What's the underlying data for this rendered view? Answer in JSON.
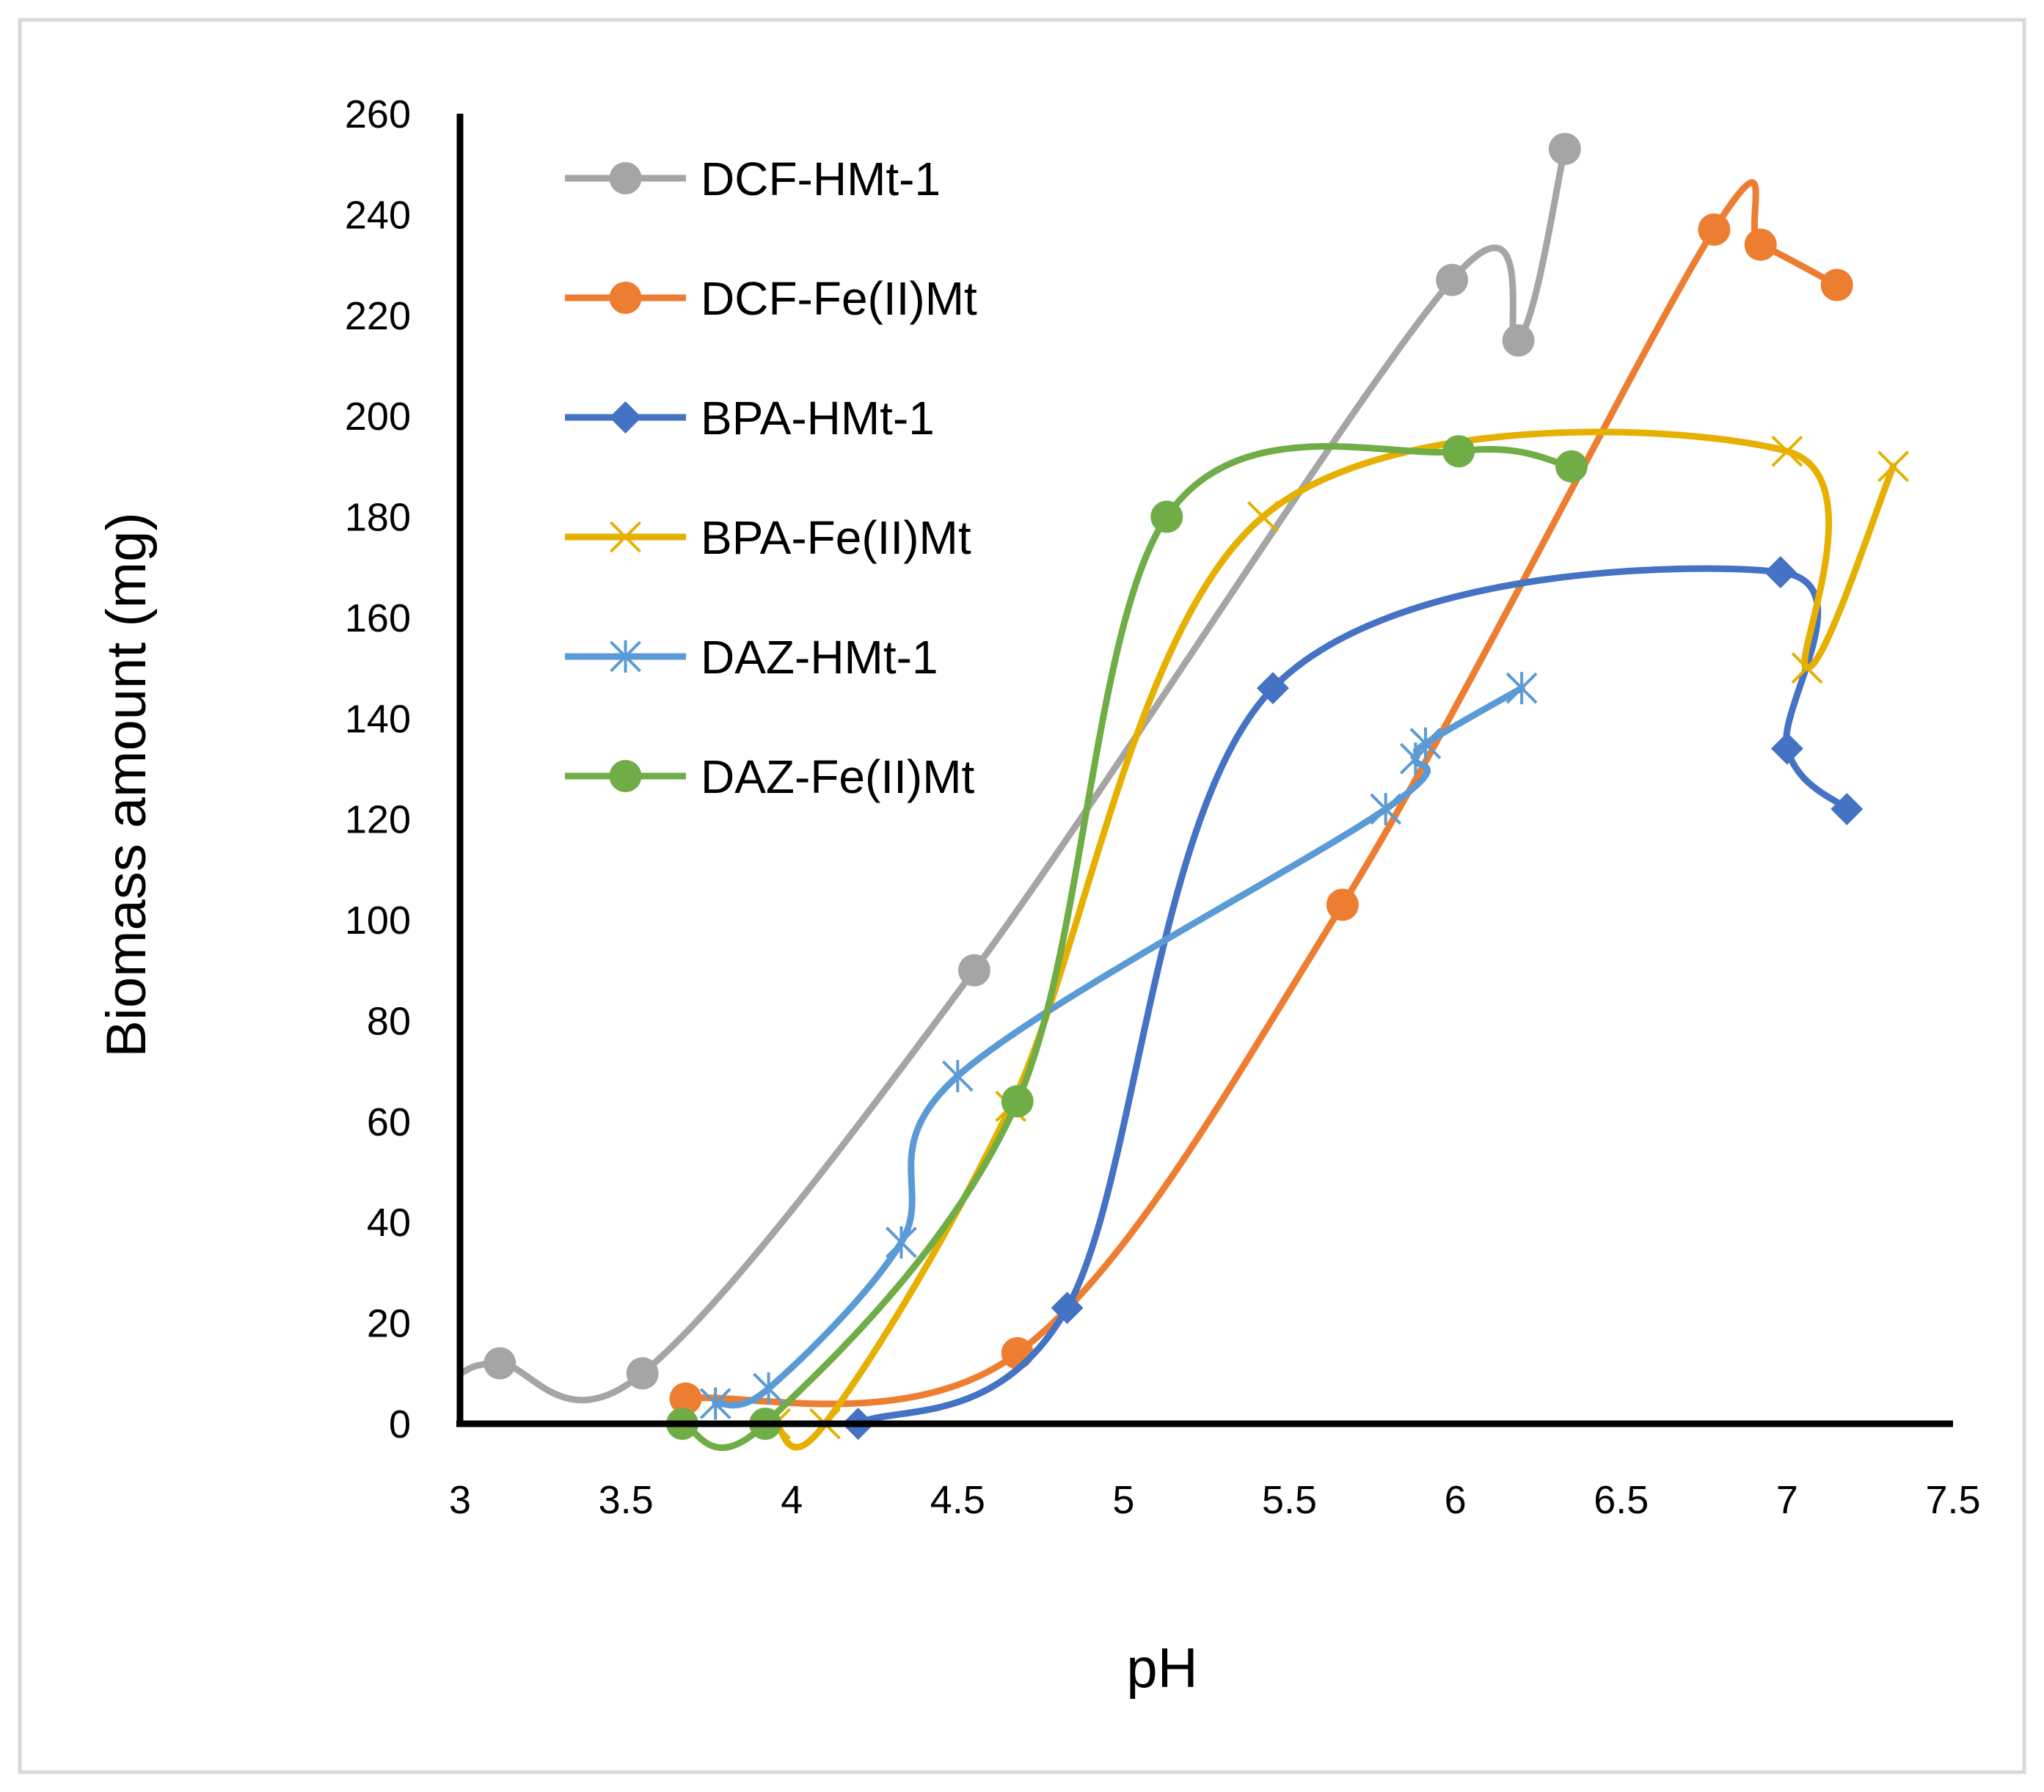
{
  "chart_data": {
    "type": "line",
    "title": "",
    "xlabel": "pH",
    "ylabel": "Biomass amount (mg)",
    "xlim": [
      3,
      7.5
    ],
    "ylim": [
      0,
      260
    ],
    "xticks": [
      3,
      3.5,
      4,
      4.5,
      5,
      5.5,
      6,
      6.5,
      7,
      7.5
    ],
    "yticks": [
      0,
      20,
      40,
      60,
      80,
      100,
      120,
      140,
      160,
      180,
      200,
      220,
      240,
      260
    ],
    "xtick_labels": [
      "3",
      "3.5",
      "4",
      "4.5",
      "5",
      "5.5",
      "6",
      "6.5",
      "7",
      "7.5"
    ],
    "ytick_labels": [
      "0",
      "20",
      "40",
      "60",
      "80",
      "100",
      "120",
      "140",
      "160",
      "180",
      "200",
      "220",
      "240",
      "260"
    ],
    "grid": false,
    "smooth": true,
    "legend_position": "top-left",
    "series": [
      {
        "name": "DCF-HMt-1",
        "color": "#a5a5a5",
        "marker": "circle",
        "line_start": [
          3.0,
          10
        ],
        "x": [
          3.12,
          3.55,
          4.55,
          5.99,
          6.19,
          6.33
        ],
        "y": [
          12,
          10,
          90,
          227,
          215,
          253
        ]
      },
      {
        "name": "DCF-Fe(II)Mt",
        "color": "#ed7d31",
        "marker": "circle",
        "x": [
          3.68,
          4.68,
          5.66,
          6.78,
          6.92,
          7.15
        ],
        "y": [
          5,
          14,
          103,
          237,
          234,
          226
        ]
      },
      {
        "name": "BPA-HMt-1",
        "color": "#4472c4",
        "marker": "diamond",
        "x": [
          4.2,
          4.83,
          5.45,
          6.98,
          7.0,
          7.18
        ],
        "y": [
          0,
          23,
          146,
          169,
          134,
          122
        ]
      },
      {
        "name": "BPA-Fe(II)Mt",
        "color": "#e6b000",
        "marker": "x",
        "x": [
          3.95,
          4.1,
          4.66,
          5.42,
          7.0,
          7.06,
          7.32
        ],
        "y": [
          0,
          0,
          63,
          180,
          193,
          150,
          190
        ]
      },
      {
        "name": "DAZ-HMt-1",
        "color": "#5b9bd5",
        "marker": "asterisk",
        "x": [
          3.77,
          3.93,
          4.33,
          4.5,
          5.79,
          5.88,
          5.91,
          6.2
        ],
        "y": [
          4,
          7,
          36,
          69,
          122,
          132,
          135,
          146
        ]
      },
      {
        "name": "DAZ-Fe(II)Mt",
        "color": "#70ad47",
        "marker": "circle",
        "x": [
          3.67,
          3.92,
          4.68,
          5.13,
          6.01,
          6.35
        ],
        "y": [
          0,
          0,
          64,
          180,
          193,
          190
        ]
      }
    ]
  }
}
